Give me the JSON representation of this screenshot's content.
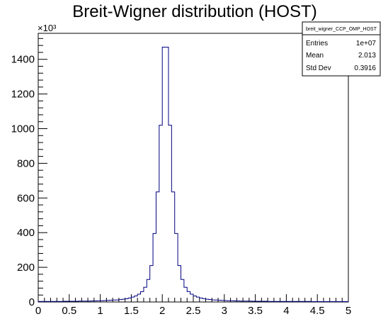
{
  "chart_data": {
    "type": "bar",
    "style": "step-histogram",
    "title": "Breit-Wigner distribution (HOST)",
    "xlabel": "",
    "ylabel": "",
    "y_multiplier_label": "×10³",
    "xlim": [
      0,
      5
    ],
    "ylim": [
      0,
      1550
    ],
    "bin_width": 0.05,
    "x_ticks": [
      "0",
      "0.5",
      "1",
      "1.5",
      "2",
      "2.5",
      "3",
      "3.5",
      "4",
      "4.5",
      "5"
    ],
    "y_ticks": [
      "0",
      "200",
      "400",
      "600",
      "800",
      "1000",
      "1200",
      "1400"
    ],
    "grid": false,
    "line_color": "#000080",
    "series": [
      {
        "values": [
          3,
          3,
          3,
          3,
          3,
          3,
          3,
          3,
          4,
          4,
          4,
          4,
          4,
          5,
          5,
          5,
          5,
          6,
          6,
          7,
          7,
          8,
          9,
          10,
          11,
          12,
          14,
          16,
          19,
          23,
          28,
          35,
          45,
          60,
          85,
          130,
          210,
          395,
          635,
          1020,
          1470,
          1470,
          1020,
          635,
          395,
          210,
          130,
          85,
          60,
          45,
          35,
          28,
          23,
          19,
          16,
          14,
          12,
          11,
          10,
          9,
          8,
          7,
          7,
          6,
          6,
          5,
          5,
          5,
          5,
          4,
          4,
          4,
          4,
          4,
          3,
          3,
          3,
          3,
          3,
          3,
          3,
          3,
          3,
          3,
          3,
          3,
          3,
          3,
          2,
          2,
          2,
          2,
          2,
          2,
          2,
          2,
          2,
          2,
          2,
          2
        ]
      }
    ],
    "stats_box": {
      "name": "breit_wigner_CCP_OMP_HOST",
      "rows": [
        {
          "label": "Entries",
          "value": "1e+07"
        },
        {
          "label": "Mean",
          "value": "2.013"
        },
        {
          "label": "Std Dev",
          "value": "0.3916"
        }
      ]
    }
  }
}
